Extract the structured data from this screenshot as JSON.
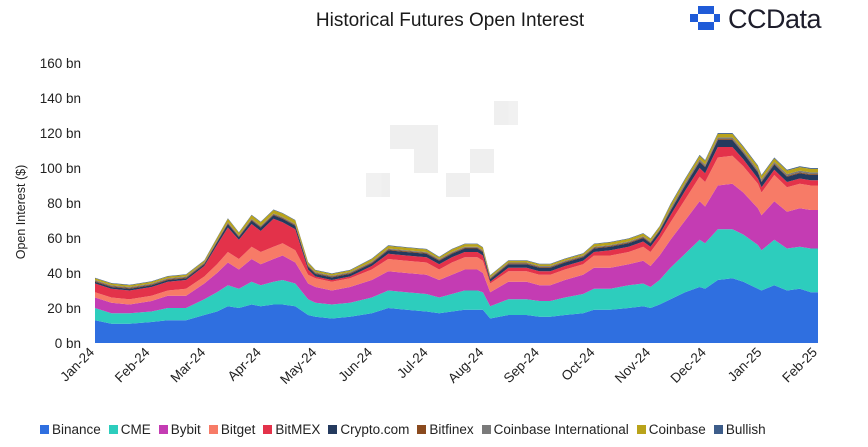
{
  "chart_data": {
    "type": "area",
    "title": "Historical Futures Open Interest",
    "ylabel": "Open Interest ($)",
    "xlabel": "",
    "ylim": [
      0,
      160
    ],
    "yticks": [
      "0 bn",
      "20 bn",
      "40 bn",
      "60 bn",
      "80 bn",
      "100 bn",
      "120 bn",
      "140 bn",
      "160 bn"
    ],
    "categories": [
      "Jan-24",
      "Feb-24",
      "Mar-24",
      "Apr-24",
      "May-24",
      "Jun-24",
      "Jul-24",
      "Aug-24",
      "Sep-24",
      "Oct-24",
      "Nov-24",
      "Dec-24",
      "Jan-25",
      "Feb-25"
    ],
    "stacked": true,
    "grid": false,
    "legend_position": "bottom",
    "x": [
      "2024-01-01",
      "2024-01-10",
      "2024-01-20",
      "2024-02-01",
      "2024-02-10",
      "2024-02-20",
      "2024-03-01",
      "2024-03-08",
      "2024-03-14",
      "2024-03-20",
      "2024-03-27",
      "2024-04-01",
      "2024-04-08",
      "2024-04-13",
      "2024-04-20",
      "2024-04-27",
      "2024-05-01",
      "2024-05-10",
      "2024-05-20",
      "2024-06-01",
      "2024-06-10",
      "2024-06-20",
      "2024-07-01",
      "2024-07-08",
      "2024-07-15",
      "2024-07-22",
      "2024-07-29",
      "2024-08-01",
      "2024-08-05",
      "2024-08-15",
      "2024-08-25",
      "2024-09-01",
      "2024-09-07",
      "2024-09-15",
      "2024-09-25",
      "2024-10-01",
      "2024-10-10",
      "2024-10-20",
      "2024-10-28",
      "2024-11-01",
      "2024-11-06",
      "2024-11-12",
      "2024-11-20",
      "2024-11-28",
      "2024-12-01",
      "2024-12-08",
      "2024-12-16",
      "2024-12-22",
      "2024-12-30",
      "2025-01-01",
      "2025-01-08",
      "2025-01-15",
      "2025-01-22",
      "2025-01-28",
      "2025-02-01"
    ],
    "series": [
      {
        "name": "Binance",
        "color": "#2f6fe0",
        "values": [
          13,
          11,
          11,
          12,
          13,
          13,
          16,
          18,
          21,
          20,
          22,
          21,
          22,
          22,
          21,
          16,
          15,
          14,
          15,
          17,
          20,
          19,
          18,
          17,
          18,
          19,
          19,
          19,
          14,
          16,
          16,
          15,
          15,
          16,
          17,
          19,
          19,
          20,
          21,
          20,
          22,
          25,
          29,
          32,
          31,
          36,
          37,
          35,
          31,
          30,
          33,
          30,
          31,
          29,
          29
        ]
      },
      {
        "name": "CME",
        "color": "#2dcdbd",
        "values": [
          7,
          6,
          6,
          6,
          7,
          7,
          9,
          11,
          12,
          11,
          13,
          12,
          13,
          14,
          13,
          9,
          8,
          8,
          8,
          9,
          10,
          10,
          10,
          9,
          10,
          11,
          11,
          10,
          7,
          9,
          9,
          9,
          9,
          10,
          11,
          12,
          12,
          13,
          13,
          12,
          14,
          18,
          22,
          27,
          26,
          29,
          28,
          27,
          25,
          23,
          26,
          24,
          24,
          25,
          25
        ]
      },
      {
        "name": "Bybit",
        "color": "#c43cb3",
        "values": [
          6,
          6,
          5,
          6,
          7,
          7,
          9,
          11,
          13,
          11,
          13,
          12,
          13,
          14,
          12,
          9,
          9,
          8,
          9,
          10,
          11,
          11,
          11,
          10,
          11,
          12,
          12,
          11,
          8,
          10,
          10,
          9,
          9,
          10,
          11,
          12,
          12,
          12,
          13,
          12,
          14,
          16,
          19,
          22,
          21,
          25,
          26,
          24,
          21,
          20,
          22,
          21,
          22,
          22,
          22
        ]
      },
      {
        "name": "Bitget",
        "color": "#f77b67",
        "values": [
          3,
          3,
          3,
          3,
          3,
          4,
          4,
          5,
          6,
          6,
          7,
          7,
          7,
          7,
          7,
          5,
          5,
          5,
          5,
          6,
          7,
          7,
          7,
          6,
          7,
          7,
          7,
          7,
          5,
          6,
          6,
          6,
          6,
          6,
          6,
          7,
          7,
          7,
          8,
          8,
          9,
          10,
          12,
          14,
          14,
          16,
          16,
          15,
          14,
          13,
          15,
          14,
          14,
          14,
          14
        ]
      },
      {
        "name": "BitMEX",
        "color": "#e3324a",
        "values": [
          5,
          5,
          5,
          5,
          5,
          5,
          6,
          11,
          14,
          11,
          13,
          12,
          16,
          12,
          12,
          3,
          1,
          1,
          1,
          2,
          3,
          3,
          3,
          3,
          3,
          3,
          3,
          3,
          1,
          2,
          2,
          2,
          2,
          2,
          2,
          2,
          3,
          3,
          3,
          3,
          3,
          4,
          5,
          5,
          5,
          6,
          5,
          4,
          3,
          3,
          3,
          3,
          3,
          3,
          3
        ]
      },
      {
        "name": "Crypto.com",
        "color": "#243a5e",
        "values": [
          1,
          1,
          1,
          1,
          1,
          1,
          1,
          1.5,
          2,
          1.5,
          2,
          2,
          2,
          2,
          2,
          1.5,
          1.5,
          1.5,
          1.5,
          1.5,
          2,
          2,
          2,
          2,
          2,
          2,
          2,
          2,
          1.5,
          2,
          2,
          2,
          2,
          2,
          2,
          2,
          2,
          2,
          2,
          2,
          2,
          2.5,
          3,
          3.5,
          3.5,
          4,
          4,
          3.5,
          3.5,
          3,
          3,
          3,
          3,
          3,
          3
        ]
      },
      {
        "name": "Bitfinex",
        "color": "#8a4a1e",
        "values": [
          0.5,
          0.5,
          0.5,
          0.5,
          0.5,
          0.5,
          0.5,
          0.5,
          0.5,
          0.5,
          0.5,
          0.5,
          0.5,
          0.5,
          0.5,
          0.5,
          0.5,
          0.5,
          0.5,
          0.5,
          0.5,
          0.5,
          0.5,
          0.5,
          0.5,
          0.5,
          0.5,
          0.5,
          0.5,
          0.5,
          0.5,
          0.5,
          0.5,
          0.5,
          0.5,
          0.5,
          0.5,
          0.5,
          0.5,
          0.5,
          0.5,
          0.5,
          0.5,
          0.5,
          0.5,
          0.5,
          0.5,
          0.5,
          0.5,
          0.5,
          0.5,
          0.5,
          0.5,
          0.5,
          0.5
        ]
      },
      {
        "name": "Coinbase International",
        "color": "#7a7a7a",
        "values": [
          0.5,
          0.5,
          0.5,
          0.5,
          0.5,
          0.5,
          0.5,
          0.5,
          0.5,
          0.5,
          0.5,
          0.5,
          0.5,
          0.5,
          0.5,
          0.5,
          0.5,
          0.5,
          0.5,
          0.5,
          0.5,
          0.5,
          0.5,
          0.5,
          0.5,
          0.5,
          0.5,
          0.5,
          0.5,
          0.5,
          0.5,
          0.5,
          0.5,
          0.5,
          0.5,
          0.5,
          0.5,
          0.5,
          0.5,
          0.5,
          0.5,
          1,
          1,
          1,
          1,
          1,
          1,
          1,
          1,
          1,
          1,
          1,
          1,
          1,
          1
        ]
      },
      {
        "name": "Coinbase",
        "color": "#b9a31a",
        "values": [
          1,
          1,
          1,
          1,
          1,
          1,
          1,
          1.5,
          2,
          1.5,
          2,
          2,
          2,
          2,
          2,
          1.5,
          1,
          1,
          1,
          1.5,
          1.5,
          1.5,
          1.5,
          1,
          1.5,
          1.5,
          1.5,
          1.5,
          1,
          1,
          1,
          1,
          1,
          1,
          1,
          1.5,
          1.5,
          1.5,
          1.5,
          1.5,
          1.5,
          2,
          2,
          2,
          2,
          2,
          2,
          2,
          2,
          2,
          2,
          2,
          2,
          2,
          2
        ]
      },
      {
        "name": "Bullish",
        "color": "#3d5d8a",
        "values": [
          0.3,
          0.3,
          0.3,
          0.3,
          0.3,
          0.3,
          0.3,
          0.3,
          0.3,
          0.3,
          0.3,
          0.3,
          0.3,
          0.3,
          0.3,
          0.3,
          0.3,
          0.3,
          0.3,
          0.3,
          0.3,
          0.3,
          0.3,
          0.3,
          0.3,
          0.3,
          0.3,
          0.3,
          0.3,
          0.3,
          0.3,
          0.3,
          0.3,
          0.3,
          0.3,
          0.3,
          0.3,
          0.3,
          0.3,
          0.3,
          0.3,
          0.5,
          0.5,
          0.5,
          0.5,
          0.5,
          0.5,
          0.5,
          0.5,
          0.5,
          0.5,
          0.5,
          0.5,
          0.5,
          0.5
        ]
      }
    ]
  },
  "brand": {
    "name": "CCData",
    "logo_color": "#1f5bd8"
  }
}
